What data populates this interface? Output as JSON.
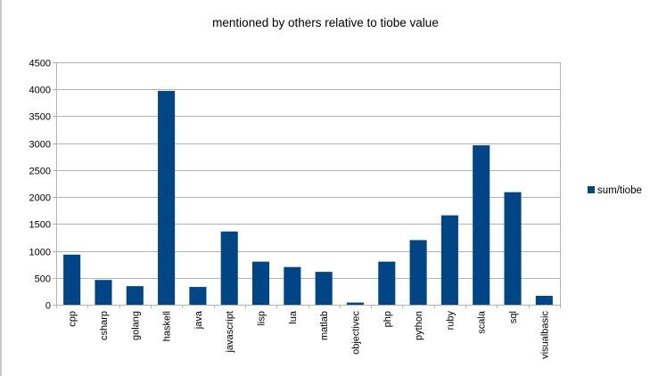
{
  "chart_data": {
    "type": "bar",
    "title": "mentioned by others relative to tiobe value",
    "xlabel": "",
    "ylabel": "",
    "ylim": [
      0,
      4500
    ],
    "yticks": [
      0,
      500,
      1000,
      1500,
      2000,
      2500,
      3000,
      3500,
      4000,
      4500
    ],
    "grid": true,
    "legend_position": "right",
    "categories": [
      "cpp",
      "csharp",
      "golang",
      "haskell",
      "java",
      "javascript",
      "lisp",
      "lua",
      "matlab",
      "objectivec",
      "php",
      "python",
      "ruby",
      "scala",
      "sql",
      "visualbasic"
    ],
    "series": [
      {
        "name": "sum/tiobe",
        "color": "#004586",
        "values": [
          930,
          460,
          345,
          3970,
          330,
          1360,
          800,
          700,
          610,
          40,
          800,
          1200,
          1660,
          2960,
          2090,
          165
        ]
      }
    ]
  }
}
